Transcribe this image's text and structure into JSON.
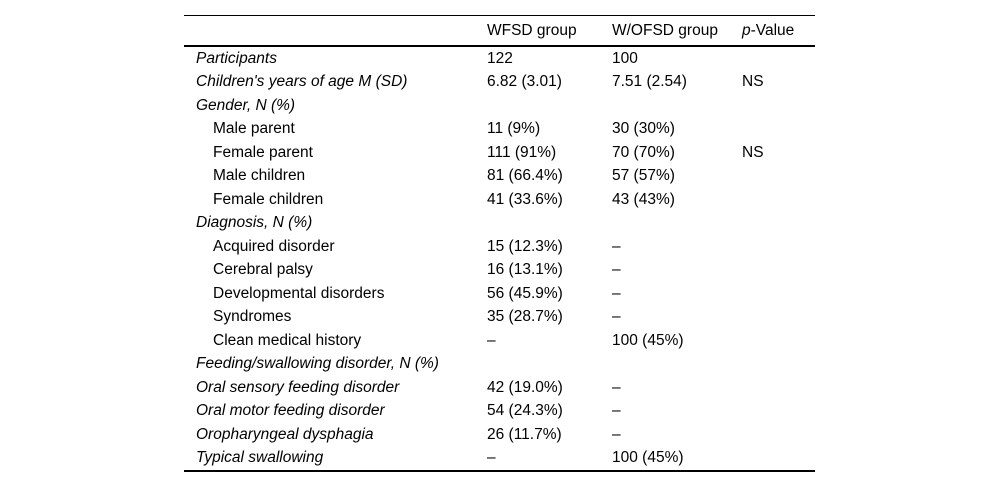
{
  "table": {
    "line_color": "#000000",
    "text_color": "#000000",
    "header": {
      "col1": "",
      "col2": "WFSD group",
      "col3": "W/OFSD group",
      "col4_italic": "p",
      "col4_rest": "-Value"
    },
    "rows": [
      {
        "label": "Participants",
        "italic": true,
        "indent": false,
        "wfsd": "122",
        "wofsd": "100",
        "p": ""
      },
      {
        "label": "Children's years of age M (SD)",
        "italic": true,
        "indent": false,
        "wfsd": "6.82 (3.01)",
        "wofsd": "7.51 (2.54)",
        "p": "NS"
      },
      {
        "label": "Gender, N (%)",
        "italic": true,
        "indent": false,
        "wfsd": "",
        "wofsd": "",
        "p": ""
      },
      {
        "label": "Male parent",
        "italic": false,
        "indent": true,
        "wfsd": "11 (9%)",
        "wofsd": "30 (30%)",
        "p": ""
      },
      {
        "label": "Female parent",
        "italic": false,
        "indent": true,
        "wfsd": "111 (91%)",
        "wofsd": "70 (70%)",
        "p": "NS"
      },
      {
        "label": "Male children",
        "italic": false,
        "indent": true,
        "wfsd": "81 (66.4%)",
        "wofsd": "57 (57%)",
        "p": ""
      },
      {
        "label": "Female children",
        "italic": false,
        "indent": true,
        "wfsd": "41 (33.6%)",
        "wofsd": "43 (43%)",
        "p": ""
      },
      {
        "label": "Diagnosis, N (%)",
        "italic": true,
        "indent": false,
        "wfsd": "",
        "wofsd": "",
        "p": ""
      },
      {
        "label": "Acquired disorder",
        "italic": false,
        "indent": true,
        "wfsd": "15 (12.3%)",
        "wofsd": "–",
        "p": ""
      },
      {
        "label": "Cerebral palsy",
        "italic": false,
        "indent": true,
        "wfsd": "16 (13.1%)",
        "wofsd": "–",
        "p": ""
      },
      {
        "label": "Developmental disorders",
        "italic": false,
        "indent": true,
        "wfsd": "56 (45.9%)",
        "wofsd": "–",
        "p": ""
      },
      {
        "label": "Syndromes",
        "italic": false,
        "indent": true,
        "wfsd": "35 (28.7%)",
        "wofsd": "–",
        "p": ""
      },
      {
        "label": "Clean medical history",
        "italic": false,
        "indent": true,
        "wfsd": "–",
        "wofsd": "100 (45%)",
        "p": ""
      },
      {
        "label": "Feeding/swallowing disorder, N (%)",
        "italic": true,
        "indent": false,
        "wfsd": "",
        "wofsd": "",
        "p": ""
      },
      {
        "label": "Oral sensory feeding disorder",
        "italic": true,
        "indent": false,
        "wfsd": "42 (19.0%)",
        "wofsd": "–",
        "p": ""
      },
      {
        "label": "Oral motor feeding disorder",
        "italic": true,
        "indent": false,
        "wfsd": "54 (24.3%)",
        "wofsd": "–",
        "p": ""
      },
      {
        "label": "Oropharyngeal dysphagia",
        "italic": true,
        "indent": false,
        "wfsd": "26 (11.7%)",
        "wofsd": "–",
        "p": ""
      },
      {
        "label": "Typical swallowing",
        "italic": true,
        "indent": false,
        "wfsd": "–",
        "wofsd": "100 (45%)",
        "p": ""
      }
    ]
  }
}
